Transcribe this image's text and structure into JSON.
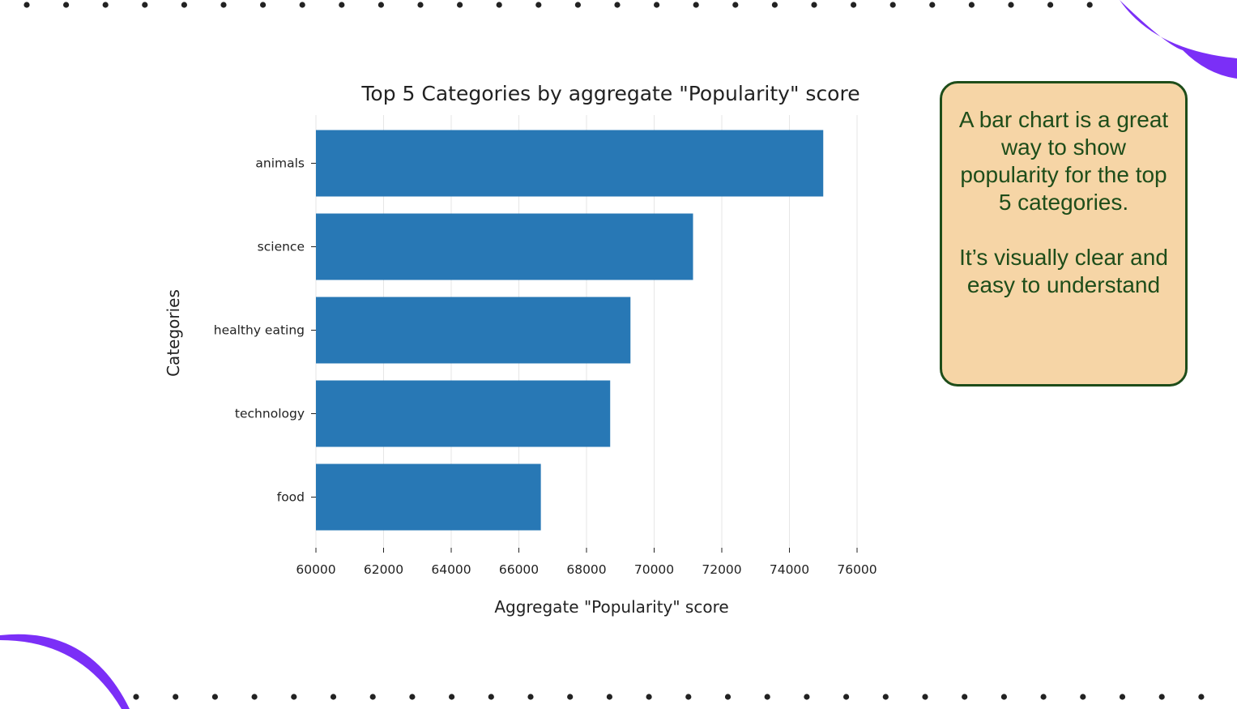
{
  "note": {
    "paragraph1": "A bar chart is a great way to show popularity for the top 5 categories.",
    "paragraph2": "It’s visually clear and easy to understand"
  },
  "colors": {
    "bar": "#2878b5",
    "note_background": "#f6d5a6",
    "note_text": "#1e4d1a",
    "accent_arc": "#7b2ff7",
    "dots": "#222222"
  },
  "chart_data": {
    "type": "bar",
    "orientation": "horizontal",
    "title": "Top 5 Categories by aggregate \"Popularity\" score",
    "xlabel": "Aggregate \"Popularity\" score",
    "ylabel": "Categories",
    "categories": [
      "animals",
      "science",
      "healthy eating",
      "technology",
      "food"
    ],
    "values": [
      75000,
      71150,
      69300,
      68700,
      66650
    ],
    "xlim": [
      60000,
      76000
    ],
    "xticks": [
      "60000",
      "62000",
      "64000",
      "66000",
      "68000",
      "70000",
      "72000",
      "74000",
      "76000"
    ],
    "grid": "vertical",
    "legend": "none"
  }
}
